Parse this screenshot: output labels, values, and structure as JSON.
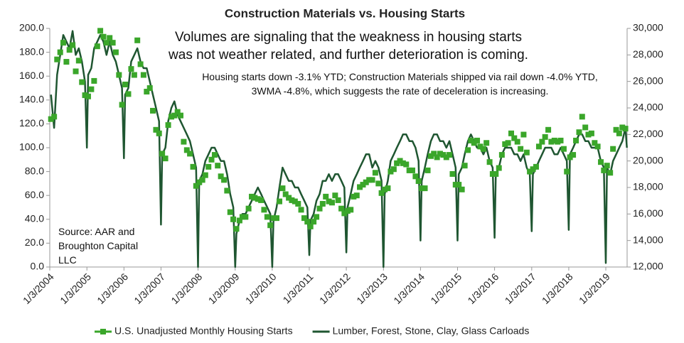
{
  "chart_data": {
    "type": "line",
    "title": "Construction Materials vs. Housing Starts",
    "annotations": [
      "Volumes are signaling that the weakness in housing starts was not weather related, and further deterioration is coming.",
      "Housing starts down -3.1% YTD; Construction Materials shipped via rail down -4.0% YTD, 3WMA -4.8%, which suggests the rate of deceleration is increasing.",
      "Source: AAR and Broughton Capital LLC"
    ],
    "xlim": [
      "2004-01-03",
      "2019-08-01"
    ],
    "xticks": [
      {
        "value": "2004-01-03",
        "label": "1/3/2004"
      },
      {
        "value": "2005-01-03",
        "label": "1/3/2005"
      },
      {
        "value": "2006-01-03",
        "label": "1/3/2006"
      },
      {
        "value": "2007-01-03",
        "label": "1/3/2007"
      },
      {
        "value": "2008-01-03",
        "label": "1/3/2008"
      },
      {
        "value": "2009-01-03",
        "label": "1/3/2009"
      },
      {
        "value": "2010-01-03",
        "label": "1/3/2010"
      },
      {
        "value": "2011-01-03",
        "label": "1/3/2011"
      },
      {
        "value": "2012-01-03",
        "label": "1/3/2012"
      },
      {
        "value": "2013-01-03",
        "label": "1/3/2013"
      },
      {
        "value": "2014-01-03",
        "label": "1/3/2014"
      },
      {
        "value": "2015-01-03",
        "label": "1/3/2015"
      },
      {
        "value": "2016-01-03",
        "label": "1/3/2016"
      },
      {
        "value": "2017-01-03",
        "label": "1/3/2017"
      },
      {
        "value": "2018-01-03",
        "label": "1/3/2018"
      },
      {
        "value": "2019-01-03",
        "label": "1/3/2019"
      }
    ],
    "ylim": [
      0,
      200
    ],
    "yticks": [
      {
        "value": 0,
        "label": "0.0"
      },
      {
        "value": 20,
        "label": "20.0"
      },
      {
        "value": 40,
        "label": "40.0"
      },
      {
        "value": 60,
        "label": "60.0"
      },
      {
        "value": 80,
        "label": "80.0"
      },
      {
        "value": 100,
        "label": "100.0"
      },
      {
        "value": 120,
        "label": "120.0"
      },
      {
        "value": 140,
        "label": "140.0"
      },
      {
        "value": 160,
        "label": "160.0"
      },
      {
        "value": 180,
        "label": "180.0"
      },
      {
        "value": 200,
        "label": "200.0"
      }
    ],
    "y2lim": [
      12000,
      30000
    ],
    "y2ticks": [
      {
        "value": 12000,
        "label": "12,000"
      },
      {
        "value": 14000,
        "label": "14,000"
      },
      {
        "value": 16000,
        "label": "16,000"
      },
      {
        "value": 18000,
        "label": "18,000"
      },
      {
        "value": 20000,
        "label": "20,000"
      },
      {
        "value": 22000,
        "label": "22,000"
      },
      {
        "value": 24000,
        "label": "24,000"
      },
      {
        "value": 26000,
        "label": "26,000"
      },
      {
        "value": 28000,
        "label": "28,000"
      },
      {
        "value": 30000,
        "label": "30,000"
      }
    ],
    "legend": "bottom",
    "series": [
      {
        "name": "U.S. Unadjusted Monthly Housing Starts",
        "color": "#3aa62a",
        "marker": "square",
        "axis": "y",
        "x": [
          "2004-01",
          "2004-02",
          "2004-03",
          "2004-04",
          "2004-05",
          "2004-06",
          "2004-07",
          "2004-08",
          "2004-09",
          "2004-10",
          "2004-11",
          "2004-12",
          "2005-01",
          "2005-02",
          "2005-03",
          "2005-04",
          "2005-05",
          "2005-06",
          "2005-07",
          "2005-08",
          "2005-09",
          "2005-10",
          "2005-11",
          "2005-12",
          "2006-01",
          "2006-02",
          "2006-03",
          "2006-04",
          "2006-05",
          "2006-06",
          "2006-07",
          "2006-08",
          "2006-09",
          "2006-10",
          "2006-11",
          "2006-12",
          "2007-01",
          "2007-02",
          "2007-03",
          "2007-04",
          "2007-05",
          "2007-06",
          "2007-07",
          "2007-08",
          "2007-09",
          "2007-10",
          "2007-11",
          "2007-12",
          "2008-01",
          "2008-02",
          "2008-03",
          "2008-04",
          "2008-05",
          "2008-06",
          "2008-07",
          "2008-08",
          "2008-09",
          "2008-10",
          "2008-11",
          "2008-12",
          "2009-01",
          "2009-02",
          "2009-03",
          "2009-04",
          "2009-05",
          "2009-06",
          "2009-07",
          "2009-08",
          "2009-09",
          "2009-10",
          "2009-11",
          "2009-12",
          "2010-01",
          "2010-02",
          "2010-03",
          "2010-04",
          "2010-05",
          "2010-06",
          "2010-07",
          "2010-08",
          "2010-09",
          "2010-10",
          "2010-11",
          "2010-12",
          "2011-01",
          "2011-02",
          "2011-03",
          "2011-04",
          "2011-05",
          "2011-06",
          "2011-07",
          "2011-08",
          "2011-09",
          "2011-10",
          "2011-11",
          "2011-12",
          "2012-01",
          "2012-02",
          "2012-03",
          "2012-04",
          "2012-05",
          "2012-06",
          "2012-07",
          "2012-08",
          "2012-09",
          "2012-10",
          "2012-11",
          "2012-12",
          "2013-01",
          "2013-02",
          "2013-03",
          "2013-04",
          "2013-05",
          "2013-06",
          "2013-07",
          "2013-08",
          "2013-09",
          "2013-10",
          "2013-11",
          "2013-12",
          "2014-01",
          "2014-02",
          "2014-03",
          "2014-04",
          "2014-05",
          "2014-06",
          "2014-07",
          "2014-08",
          "2014-09",
          "2014-10",
          "2014-11",
          "2014-12",
          "2015-01",
          "2015-02",
          "2015-03",
          "2015-04",
          "2015-05",
          "2015-06",
          "2015-07",
          "2015-08",
          "2015-09",
          "2015-10",
          "2015-11",
          "2015-12",
          "2016-01",
          "2016-02",
          "2016-03",
          "2016-04",
          "2016-05",
          "2016-06",
          "2016-07",
          "2016-08",
          "2016-09",
          "2016-10",
          "2016-11",
          "2016-12",
          "2017-01",
          "2017-02",
          "2017-03",
          "2017-04",
          "2017-05",
          "2017-06",
          "2017-07",
          "2017-08",
          "2017-09",
          "2017-10",
          "2017-11",
          "2017-12",
          "2018-01",
          "2018-02",
          "2018-03",
          "2018-04",
          "2018-05",
          "2018-06",
          "2018-07",
          "2018-08",
          "2018-09",
          "2018-10",
          "2018-11",
          "2018-12",
          "2019-01",
          "2019-02",
          "2019-03",
          "2019-04",
          "2019-05",
          "2019-06",
          "2019-07"
        ],
        "values": [
          124,
          126,
          174,
          180,
          188,
          172,
          182,
          186,
          164,
          173,
          155,
          144,
          143,
          149,
          156,
          185,
          198,
          193,
          188,
          192,
          188,
          180,
          161,
          136,
          153,
          145,
          166,
          161,
          190,
          170,
          161,
          147,
          150,
          131,
          115,
          112,
          95,
          91,
          119,
          126,
          127,
          130,
          127,
          105,
          98,
          95,
          84,
          68,
          71,
          73,
          77,
          84,
          90,
          94,
          85,
          76,
          73,
          64,
          46,
          40,
          32,
          39,
          42,
          42,
          49,
          59,
          58,
          57,
          56,
          48,
          42,
          35,
          41,
          41,
          55,
          66,
          61,
          58,
          56,
          55,
          53,
          48,
          41,
          38,
          34,
          38,
          42,
          49,
          53,
          59,
          55,
          54,
          60,
          56,
          49,
          45,
          47,
          48,
          59,
          60,
          67,
          69,
          71,
          73,
          73,
          79,
          70,
          62,
          65,
          66,
          80,
          82,
          87,
          89,
          87,
          86,
          81,
          81,
          76,
          72,
          66,
          66,
          81,
          93,
          95,
          92,
          95,
          94,
          92,
          94,
          78,
          69,
          69,
          65,
          85,
          98,
          106,
          104,
          106,
          101,
          99,
          104,
          88,
          78,
          78,
          83,
          94,
          103,
          104,
          112,
          108,
          105,
          99,
          111,
          96,
          80,
          82,
          84,
          101,
          105,
          109,
          115,
          105,
          106,
          105,
          106,
          99,
          80,
          92,
          94,
          106,
          113,
          126,
          117,
          111,
          112,
          104,
          101,
          88,
          81,
          85,
          79,
          99,
          115,
          112,
          117,
          116
        ]
      },
      {
        "name": "Lumber, Forest, Stone, Clay, Glass Carloads",
        "color": "#1f5631",
        "axis": "y2",
        "x": [
          "2004-01-15",
          "2004-02-15",
          "2004-03-15",
          "2004-04-15",
          "2004-05-15",
          "2004-06-15",
          "2004-07-15",
          "2004-08-15",
          "2004-09-15",
          "2004-10-15",
          "2004-11-15",
          "2004-12-15",
          "2005-01-03",
          "2005-01-15",
          "2005-02-15",
          "2005-03-15",
          "2005-04-15",
          "2005-05-15",
          "2005-06-15",
          "2005-07-15",
          "2005-08-15",
          "2005-09-15",
          "2005-10-15",
          "2005-11-15",
          "2005-12-15",
          "2006-01-03",
          "2006-01-15",
          "2006-02-15",
          "2006-03-15",
          "2006-04-15",
          "2006-05-15",
          "2006-06-15",
          "2006-07-15",
          "2006-08-15",
          "2006-09-15",
          "2006-10-15",
          "2006-11-15",
          "2006-12-15",
          "2007-01-03",
          "2007-01-15",
          "2007-02-15",
          "2007-03-15",
          "2007-04-15",
          "2007-05-15",
          "2007-06-15",
          "2007-07-15",
          "2007-08-15",
          "2007-09-15",
          "2007-10-15",
          "2007-11-15",
          "2007-12-15",
          "2008-01-03",
          "2008-01-15",
          "2008-02-15",
          "2008-03-15",
          "2008-04-15",
          "2008-05-15",
          "2008-06-15",
          "2008-07-15",
          "2008-08-15",
          "2008-09-15",
          "2008-10-15",
          "2008-11-15",
          "2008-12-15",
          "2009-01-03",
          "2009-01-15",
          "2009-02-15",
          "2009-03-15",
          "2009-04-15",
          "2009-05-15",
          "2009-06-15",
          "2009-07-15",
          "2009-08-15",
          "2009-09-15",
          "2009-10-15",
          "2009-11-15",
          "2009-12-15",
          "2010-01-03",
          "2010-01-15",
          "2010-02-15",
          "2010-03-15",
          "2010-04-15",
          "2010-05-15",
          "2010-06-15",
          "2010-07-15",
          "2010-08-15",
          "2010-09-15",
          "2010-10-15",
          "2010-11-15",
          "2010-12-15",
          "2011-01-03",
          "2011-01-15",
          "2011-02-15",
          "2011-03-15",
          "2011-04-15",
          "2011-05-15",
          "2011-06-15",
          "2011-07-15",
          "2011-08-15",
          "2011-09-15",
          "2011-10-15",
          "2011-11-15",
          "2011-12-15",
          "2012-01-03",
          "2012-01-15",
          "2012-02-15",
          "2012-03-15",
          "2012-04-15",
          "2012-05-15",
          "2012-06-15",
          "2012-07-15",
          "2012-08-15",
          "2012-09-15",
          "2012-10-15",
          "2012-11-15",
          "2012-12-15",
          "2013-01-03",
          "2013-01-15",
          "2013-02-15",
          "2013-03-15",
          "2013-04-15",
          "2013-05-15",
          "2013-06-15",
          "2013-07-15",
          "2013-08-15",
          "2013-09-15",
          "2013-10-15",
          "2013-11-15",
          "2013-12-15",
          "2014-01-03",
          "2014-01-15",
          "2014-02-15",
          "2014-03-15",
          "2014-04-15",
          "2014-05-15",
          "2014-06-15",
          "2014-07-15",
          "2014-08-15",
          "2014-09-15",
          "2014-10-15",
          "2014-11-15",
          "2014-12-15",
          "2015-01-03",
          "2015-01-15",
          "2015-02-15",
          "2015-03-15",
          "2015-04-15",
          "2015-05-15",
          "2015-06-15",
          "2015-07-15",
          "2015-08-15",
          "2015-09-15",
          "2015-10-15",
          "2015-11-15",
          "2015-12-15",
          "2016-01-03",
          "2016-01-15",
          "2016-02-15",
          "2016-03-15",
          "2016-04-15",
          "2016-05-15",
          "2016-06-15",
          "2016-07-15",
          "2016-08-15",
          "2016-09-15",
          "2016-10-15",
          "2016-11-15",
          "2016-12-15",
          "2017-01-03",
          "2017-01-15",
          "2017-02-15",
          "2017-03-15",
          "2017-04-15",
          "2017-05-15",
          "2017-06-15",
          "2017-07-15",
          "2017-08-15",
          "2017-09-15",
          "2017-10-15",
          "2017-11-15",
          "2017-12-15",
          "2018-01-03",
          "2018-01-15",
          "2018-02-15",
          "2018-03-15",
          "2018-04-15",
          "2018-05-15",
          "2018-06-15",
          "2018-07-15",
          "2018-08-15",
          "2018-09-15",
          "2018-10-15",
          "2018-11-15",
          "2018-12-15",
          "2019-01-03",
          "2019-01-15",
          "2019-02-15",
          "2019-03-15",
          "2019-04-15",
          "2019-05-15",
          "2019-06-15",
          "2019-07-15",
          "2019-07-30"
        ],
        "values": [
          25000,
          22500,
          26500,
          28000,
          29500,
          29000,
          28500,
          29800,
          28000,
          28500,
          27500,
          26000,
          21000,
          26500,
          27000,
          28500,
          29000,
          29500,
          29000,
          28000,
          29000,
          28000,
          27500,
          26500,
          25500,
          20200,
          25000,
          25500,
          27500,
          28000,
          28500,
          27500,
          27000,
          27000,
          26000,
          25000,
          24000,
          23000,
          15200,
          20500,
          21000,
          23000,
          24000,
          24500,
          23500,
          23000,
          22500,
          22000,
          21500,
          20500,
          19500,
          12000,
          18500,
          19000,
          20000,
          20500,
          21000,
          21000,
          20500,
          20000,
          20000,
          19000,
          17500,
          16500,
          12000,
          14500,
          15500,
          16000,
          16000,
          16500,
          17000,
          17500,
          18000,
          17500,
          17000,
          16500,
          16000,
          12000,
          15500,
          16500,
          18000,
          19500,
          19000,
          18500,
          18500,
          18000,
          18000,
          17500,
          17000,
          16500,
          12900,
          15500,
          16000,
          17000,
          17500,
          18500,
          18500,
          19000,
          18500,
          19000,
          19000,
          18500,
          18000,
          13100,
          16500,
          17500,
          18500,
          19000,
          19500,
          20000,
          20500,
          20500,
          19500,
          20000,
          19500,
          18500,
          12000,
          17500,
          18500,
          20000,
          20500,
          21000,
          21500,
          22000,
          22000,
          21500,
          21500,
          21000,
          20000,
          14000,
          18500,
          19500,
          20500,
          21500,
          22000,
          22000,
          21500,
          21500,
          21000,
          21500,
          20500,
          19500,
          14000,
          19000,
          19500,
          20500,
          21500,
          22000,
          21500,
          21000,
          21000,
          20500,
          21000,
          20000,
          19500,
          14200,
          19000,
          19500,
          20500,
          21000,
          21000,
          21000,
          20500,
          20500,
          20000,
          20500,
          19500,
          19000,
          14700,
          19000,
          19500,
          20000,
          20500,
          21000,
          21000,
          21000,
          20500,
          20500,
          21000,
          20500,
          20000,
          14800,
          20500,
          21000,
          21500,
          22000,
          22000,
          21500,
          21500,
          21000,
          21000,
          21000,
          20000,
          19500,
          12300,
          19500,
          19000,
          20000,
          20500,
          21000,
          21500,
          22500,
          21000
        ]
      }
    ]
  }
}
